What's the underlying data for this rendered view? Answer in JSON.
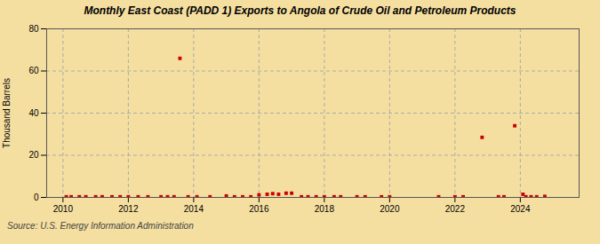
{
  "chart_data": {
    "type": "scatter",
    "title": "Monthly East Coast (PADD 1) Exports to Angola of Crude Oil and Petroleum Products",
    "ylabel": "Thousand Barrels",
    "source": "Source: U.S. Energy Information Administration",
    "color": "#cc0000",
    "marker": "square",
    "x": [
      2010.1,
      2010.25,
      2010.5,
      2010.7,
      2011.0,
      2011.2,
      2011.5,
      2011.75,
      2012.0,
      2012.3,
      2012.6,
      2013.0,
      2013.2,
      2013.4,
      2013.58,
      2013.83,
      2014.1,
      2014.5,
      2015.0,
      2015.25,
      2015.5,
      2015.75,
      2016.0,
      2016.25,
      2016.42,
      2016.6,
      2016.83,
      2017.0,
      2017.3,
      2017.5,
      2017.75,
      2018.0,
      2018.3,
      2018.5,
      2019.0,
      2019.25,
      2019.75,
      2020.0,
      2021.5,
      2022.0,
      2022.25,
      2022.83,
      2023.33,
      2023.5,
      2023.83,
      2024.08,
      2024.17,
      2024.33,
      2024.5,
      2024.75
    ],
    "values": [
      0.3,
      0.3,
      0.3,
      0.3,
      0.3,
      0.3,
      0.3,
      0.3,
      0.3,
      0.3,
      0.3,
      0.3,
      0.3,
      0.3,
      66.0,
      0.3,
      0.3,
      0.3,
      0.7,
      0.3,
      0.3,
      0.3,
      1.2,
      1.5,
      1.8,
      1.5,
      2.0,
      2.0,
      0.3,
      0.3,
      0.3,
      0.3,
      0.3,
      0.3,
      0.3,
      0.3,
      0.3,
      0.3,
      0.3,
      0.3,
      0.3,
      28.5,
      0.3,
      0.3,
      34.0,
      1.5,
      0.3,
      0.3,
      0.3,
      0.5
    ],
    "xlim": [
      2009.5,
      2025.8
    ],
    "ylim": [
      0,
      80
    ],
    "xticks": [
      2010,
      2012,
      2014,
      2016,
      2018,
      2020,
      2022,
      2024
    ],
    "yticks": [
      0,
      20,
      40,
      60,
      80
    ],
    "grid": true
  }
}
